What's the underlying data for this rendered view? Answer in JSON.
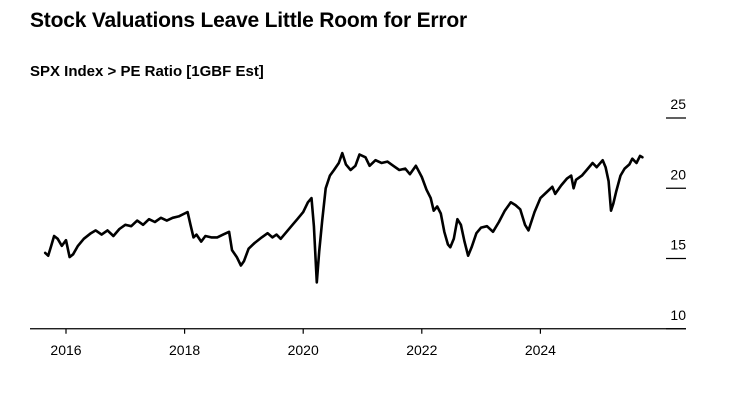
{
  "chart_data": {
    "type": "line",
    "title": "Stock Valuations Leave Little Room for Error",
    "subtitle": "SPX Index > PE Ratio [1GBF Est]",
    "xlabel": "",
    "ylabel": "",
    "xlim": [
      2015.6,
      2025.85
    ],
    "ylim": [
      10,
      25
    ],
    "y_axis_position": "right",
    "grid": false,
    "x_ticks": [
      {
        "value": 2016,
        "label": "2016"
      },
      {
        "value": 2018,
        "label": "2018"
      },
      {
        "value": 2020,
        "label": "2020"
      },
      {
        "value": 2022,
        "label": "2022"
      },
      {
        "value": 2024,
        "label": "2024"
      }
    ],
    "y_ticks": [
      {
        "value": 25,
        "label": "25"
      },
      {
        "value": 20,
        "label": "20"
      },
      {
        "value": 15,
        "label": "15"
      },
      {
        "value": 10,
        "label": "10"
      }
    ],
    "series": [
      {
        "color": "#000000",
        "points": [
          [
            2015.65,
            15.4
          ],
          [
            2015.7,
            15.2
          ],
          [
            2015.75,
            15.9
          ],
          [
            2015.8,
            16.6
          ],
          [
            2015.86,
            16.4
          ],
          [
            2015.93,
            15.9
          ],
          [
            2016.0,
            16.3
          ],
          [
            2016.06,
            15.1
          ],
          [
            2016.12,
            15.3
          ],
          [
            2016.2,
            15.9
          ],
          [
            2016.3,
            16.4
          ],
          [
            2016.42,
            16.8
          ],
          [
            2016.5,
            17.0
          ],
          [
            2016.6,
            16.7
          ],
          [
            2016.7,
            17.0
          ],
          [
            2016.8,
            16.6
          ],
          [
            2016.9,
            17.1
          ],
          [
            2017.0,
            17.4
          ],
          [
            2017.1,
            17.3
          ],
          [
            2017.2,
            17.7
          ],
          [
            2017.3,
            17.4
          ],
          [
            2017.4,
            17.8
          ],
          [
            2017.5,
            17.6
          ],
          [
            2017.6,
            17.9
          ],
          [
            2017.7,
            17.7
          ],
          [
            2017.8,
            17.9
          ],
          [
            2017.9,
            18.0
          ],
          [
            2018.0,
            18.2
          ],
          [
            2018.05,
            18.3
          ],
          [
            2018.1,
            17.4
          ],
          [
            2018.15,
            16.5
          ],
          [
            2018.2,
            16.7
          ],
          [
            2018.28,
            16.2
          ],
          [
            2018.35,
            16.6
          ],
          [
            2018.45,
            16.5
          ],
          [
            2018.55,
            16.5
          ],
          [
            2018.65,
            16.7
          ],
          [
            2018.75,
            16.9
          ],
          [
            2018.8,
            15.6
          ],
          [
            2018.88,
            15.1
          ],
          [
            2018.95,
            14.5
          ],
          [
            2019.0,
            14.8
          ],
          [
            2019.08,
            15.7
          ],
          [
            2019.18,
            16.1
          ],
          [
            2019.3,
            16.5
          ],
          [
            2019.4,
            16.8
          ],
          [
            2019.48,
            16.5
          ],
          [
            2019.55,
            16.7
          ],
          [
            2019.62,
            16.4
          ],
          [
            2019.72,
            16.9
          ],
          [
            2019.82,
            17.4
          ],
          [
            2019.9,
            17.8
          ],
          [
            2020.0,
            18.3
          ],
          [
            2020.08,
            19.0
          ],
          [
            2020.14,
            19.3
          ],
          [
            2020.18,
            17.3
          ],
          [
            2020.21,
            14.8
          ],
          [
            2020.23,
            13.3
          ],
          [
            2020.27,
            15.5
          ],
          [
            2020.32,
            17.7
          ],
          [
            2020.38,
            20.0
          ],
          [
            2020.45,
            20.9
          ],
          [
            2020.52,
            21.3
          ],
          [
            2020.6,
            21.8
          ],
          [
            2020.66,
            22.5
          ],
          [
            2020.72,
            21.7
          ],
          [
            2020.8,
            21.3
          ],
          [
            2020.88,
            21.6
          ],
          [
            2020.95,
            22.4
          ],
          [
            2021.05,
            22.2
          ],
          [
            2021.12,
            21.6
          ],
          [
            2021.22,
            22.0
          ],
          [
            2021.32,
            21.8
          ],
          [
            2021.42,
            21.9
          ],
          [
            2021.52,
            21.6
          ],
          [
            2021.62,
            21.3
          ],
          [
            2021.72,
            21.4
          ],
          [
            2021.8,
            21.0
          ],
          [
            2021.9,
            21.6
          ],
          [
            2022.0,
            20.8
          ],
          [
            2022.08,
            19.9
          ],
          [
            2022.15,
            19.3
          ],
          [
            2022.2,
            18.4
          ],
          [
            2022.26,
            18.7
          ],
          [
            2022.32,
            18.2
          ],
          [
            2022.38,
            16.9
          ],
          [
            2022.44,
            16.0
          ],
          [
            2022.48,
            15.8
          ],
          [
            2022.54,
            16.4
          ],
          [
            2022.6,
            17.8
          ],
          [
            2022.66,
            17.4
          ],
          [
            2022.72,
            16.2
          ],
          [
            2022.78,
            15.2
          ],
          [
            2022.84,
            15.8
          ],
          [
            2022.92,
            16.8
          ],
          [
            2023.0,
            17.2
          ],
          [
            2023.1,
            17.3
          ],
          [
            2023.2,
            16.9
          ],
          [
            2023.3,
            17.6
          ],
          [
            2023.4,
            18.4
          ],
          [
            2023.5,
            19.0
          ],
          [
            2023.58,
            18.8
          ],
          [
            2023.66,
            18.5
          ],
          [
            2023.74,
            17.4
          ],
          [
            2023.8,
            17.0
          ],
          [
            2023.9,
            18.3
          ],
          [
            2024.0,
            19.3
          ],
          [
            2024.1,
            19.7
          ],
          [
            2024.2,
            20.1
          ],
          [
            2024.25,
            19.6
          ],
          [
            2024.35,
            20.2
          ],
          [
            2024.45,
            20.7
          ],
          [
            2024.52,
            20.9
          ],
          [
            2024.56,
            20.0
          ],
          [
            2024.6,
            20.6
          ],
          [
            2024.7,
            20.9
          ],
          [
            2024.78,
            21.3
          ],
          [
            2024.88,
            21.8
          ],
          [
            2024.95,
            21.5
          ],
          [
            2025.05,
            22.0
          ],
          [
            2025.1,
            21.5
          ],
          [
            2025.15,
            20.5
          ],
          [
            2025.19,
            18.4
          ],
          [
            2025.23,
            18.9
          ],
          [
            2025.28,
            19.8
          ],
          [
            2025.35,
            20.9
          ],
          [
            2025.42,
            21.4
          ],
          [
            2025.5,
            21.7
          ],
          [
            2025.55,
            22.1
          ],
          [
            2025.62,
            21.8
          ],
          [
            2025.68,
            22.3
          ],
          [
            2025.72,
            22.2
          ]
        ]
      }
    ]
  }
}
